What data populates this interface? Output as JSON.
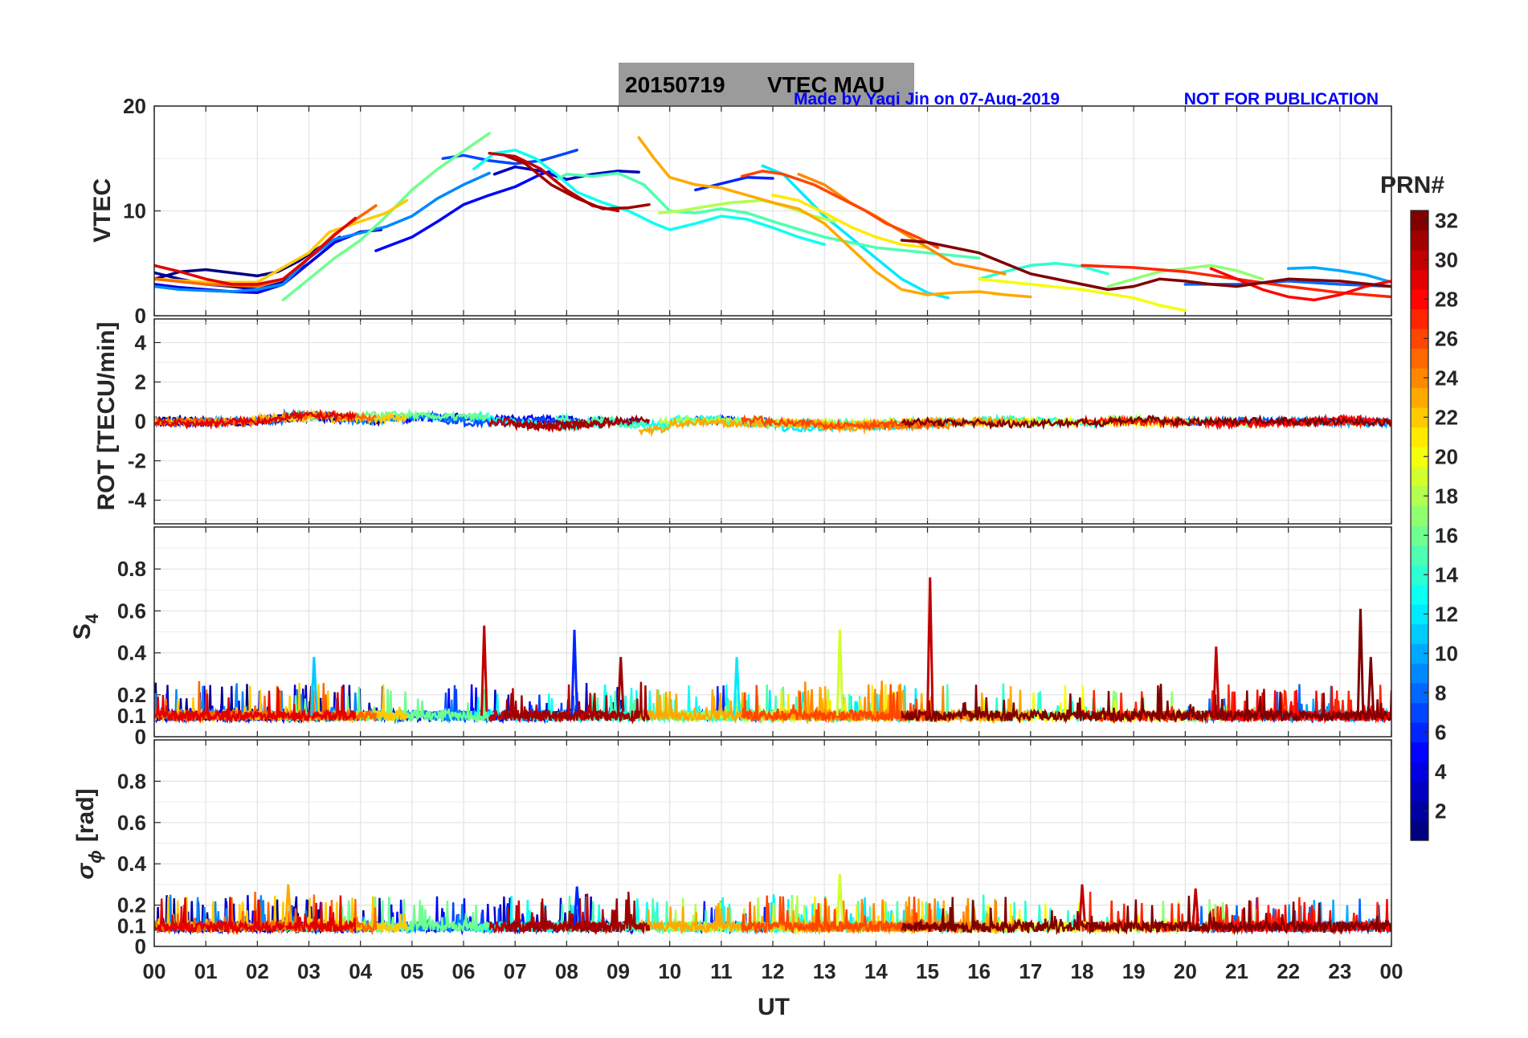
{
  "chart_data": {
    "type": "line",
    "title_box": {
      "date": "20150719",
      "label": "VTEC MAU"
    },
    "credit": "Made by Yaqi Jin on 07-Aug-2019",
    "notice": "NOT FOR PUBLICATION",
    "xlabel": "UT",
    "x_ticks": [
      "00",
      "01",
      "02",
      "03",
      "04",
      "05",
      "06",
      "07",
      "08",
      "09",
      "10",
      "11",
      "12",
      "13",
      "14",
      "15",
      "16",
      "17",
      "18",
      "19",
      "20",
      "21",
      "22",
      "23",
      "00"
    ],
    "xlim": [
      0,
      24
    ],
    "colorbar": {
      "label": "PRN#",
      "range": [
        1,
        32
      ],
      "ticks": [
        "2",
        "4",
        "6",
        "8",
        "10",
        "12",
        "14",
        "16",
        "18",
        "20",
        "22",
        "24",
        "26",
        "28",
        "30",
        "32"
      ]
    },
    "panels": [
      {
        "name": "vtec",
        "ylabel": "VTEC",
        "ylim": [
          0,
          20
        ],
        "yticks": [
          "0",
          "10",
          "20"
        ],
        "series": [
          {
            "prn": 1,
            "x": [
              0,
              0.5,
              1,
              1.5,
              2,
              2.4,
              2.8,
              3.2,
              3.6
            ],
            "y": [
              3.5,
              4.2,
              4.4,
              4.1,
              3.8,
              4.2,
              5.2,
              6.5,
              7.5
            ]
          },
          {
            "prn": 2,
            "x": [
              0,
              0.5,
              1,
              1.5,
              2,
              2.5,
              3,
              3.5,
              4,
              4.4
            ],
            "y": [
              4.1,
              3.5,
              3.0,
              2.8,
              2.5,
              3.2,
              5.0,
              7.0,
              8.0,
              8.2
            ]
          },
          {
            "prn": 3,
            "x": [
              6.6,
              7,
              7.5,
              8,
              8.5,
              9,
              9.4
            ],
            "y": [
              13.5,
              14.2,
              13.8,
              13.0,
              13.5,
              13.8,
              13.7
            ]
          },
          {
            "prn": 4,
            "x": [
              0,
              0.5,
              1,
              1.5,
              2,
              2.5,
              3,
              3.5,
              4
            ],
            "y": [
              3.0,
              2.7,
              2.5,
              2.3,
              2.2,
              3.0,
              5.0,
              7.0,
              8.0
            ]
          },
          {
            "prn": 5,
            "x": [
              4.3,
              5,
              5.5,
              6,
              6.5,
              7,
              7.5,
              7.7
            ],
            "y": [
              6.2,
              7.5,
              9.0,
              10.6,
              11.5,
              12.3,
              13.5,
              13.8
            ]
          },
          {
            "prn": 6,
            "x": [
              10.5,
              11,
              11.5,
              12
            ],
            "y": [
              12.0,
              12.6,
              13.2,
              13.1
            ]
          },
          {
            "prn": 7,
            "x": [
              5.6,
              6,
              6.5,
              7,
              7.5,
              8,
              8.2
            ],
            "y": [
              15.0,
              15.3,
              14.8,
              14.5,
              14.8,
              15.5,
              15.8
            ]
          },
          {
            "prn": 8,
            "x": [
              20,
              21,
              22,
              23,
              24
            ],
            "y": [
              3.0,
              3.0,
              3.3,
              3.0,
              2.8
            ]
          },
          {
            "prn": 9,
            "x": [
              0,
              0.5,
              1,
              1.5,
              2,
              2.5,
              3,
              3.5,
              4,
              4.5,
              5,
              5.5,
              6,
              6.5
            ],
            "y": [
              2.8,
              2.5,
              2.4,
              2.3,
              2.5,
              3.0,
              5.5,
              7.3,
              7.9,
              8.5,
              9.5,
              11.2,
              12.5,
              13.6
            ]
          },
          {
            "prn": 10,
            "x": [
              22,
              22.5,
              23,
              23.5,
              24
            ],
            "y": [
              4.5,
              4.6,
              4.3,
              3.9,
              3.2
            ]
          },
          {
            "prn": 12,
            "x": [
              11.8,
              12.2,
              12.6,
              13,
              13.5,
              14,
              14.5,
              15,
              15.4
            ],
            "y": [
              14.3,
              13.5,
              11.5,
              9.5,
              7.5,
              5.5,
              3.5,
              2.2,
              1.7
            ]
          },
          {
            "prn": 13,
            "x": [
              6.2,
              6.6,
              7,
              7.4,
              7.8,
              8.2,
              8.7,
              9.2,
              9.7,
              10,
              10.5,
              11,
              11.5,
              12,
              12.5,
              13
            ],
            "y": [
              14.0,
              15.5,
              15.8,
              15.0,
              13.5,
              11.8,
              10.8,
              10.0,
              8.8,
              8.2,
              8.8,
              9.5,
              9.2,
              8.4,
              7.5,
              6.8
            ]
          },
          {
            "prn": 14,
            "x": [
              16,
              16.5,
              17,
              17.5,
              18,
              18.5
            ],
            "y": [
              3.5,
              4.2,
              4.8,
              5.0,
              4.7,
              4.0
            ]
          },
          {
            "prn": 15,
            "x": [
              7.8,
              8,
              8.5,
              9,
              9.5,
              10,
              10.5,
              11,
              11.5,
              12,
              13,
              14,
              15,
              16
            ],
            "y": [
              13.0,
              13.5,
              13.3,
              13.6,
              12.5,
              10.0,
              9.8,
              10.2,
              9.8,
              9.0,
              7.5,
              6.5,
              6.0,
              5.5
            ]
          },
          {
            "prn": 16,
            "x": [
              2.5,
              3,
              3.5,
              4,
              4.5,
              5,
              5.5,
              6,
              6.5
            ],
            "y": [
              1.5,
              3.5,
              5.5,
              7.2,
              9.5,
              12.0,
              14.0,
              15.7,
              17.4
            ]
          },
          {
            "prn": 17,
            "x": [
              18.5,
              19,
              19.5,
              20,
              20.5,
              21,
              21.5
            ],
            "y": [
              2.8,
              3.5,
              4.2,
              4.5,
              4.8,
              4.3,
              3.5
            ]
          },
          {
            "prn": 18,
            "x": [
              9.8,
              10.2,
              10.8,
              11.2,
              11.8,
              12.2,
              12.8,
              13.2
            ],
            "y": [
              9.8,
              10.0,
              10.5,
              10.8,
              11.0,
              10.5,
              9.5,
              9.0
            ]
          },
          {
            "prn": 20,
            "x": [
              16,
              17,
              18,
              19,
              19.5,
              20
            ],
            "y": [
              3.5,
              3.0,
              2.5,
              1.7,
              1.0,
              0.5
            ]
          },
          {
            "prn": 21,
            "x": [
              12,
              12.5,
              13,
              13.5,
              14,
              14.5,
              15
            ],
            "y": [
              11.5,
              11.0,
              9.8,
              8.5,
              7.5,
              6.8,
              6.5
            ]
          },
          {
            "prn": 22,
            "x": [
              0,
              1,
              2,
              3,
              3.4,
              4,
              4.5,
              4.9
            ],
            "y": [
              3.5,
              3.2,
              3.2,
              6.0,
              8.0,
              9.0,
              9.8,
              11.0
            ]
          },
          {
            "prn": 23,
            "x": [
              9.4,
              9.7,
              10,
              10.5,
              11,
              11.5,
              12,
              12.5,
              13,
              13.5,
              14,
              14.5,
              15,
              15.5,
              16,
              16.5,
              17
            ],
            "y": [
              17.0,
              15.0,
              13.2,
              12.5,
              12.2,
              11.5,
              10.8,
              10.2,
              8.8,
              6.5,
              4.2,
              2.5,
              2.0,
              2.2,
              2.3,
              2.0,
              1.8
            ]
          },
          {
            "prn": 24,
            "x": [
              12.5,
              13,
              13.5,
              14,
              14.5,
              15,
              15.5,
              16,
              16.5
            ],
            "y": [
              13.5,
              12.5,
              10.8,
              9.5,
              8.0,
              6.5,
              5.0,
              4.5,
              4.0
            ]
          },
          {
            "prn": 25,
            "x": [
              0,
              1,
              2,
              2.5,
              3,
              3.5,
              4,
              4.3
            ],
            "y": [
              3.5,
              3.0,
              2.8,
              3.5,
              5.5,
              7.8,
              9.5,
              10.5
            ]
          },
          {
            "prn": 26,
            "x": [
              11.4,
              11.8,
              12.2,
              12.8,
              13.2,
              13.8,
              14.2,
              14.8,
              15.2
            ],
            "y": [
              13.3,
              13.8,
              13.5,
              12.5,
              11.5,
              10.0,
              8.8,
              7.5,
              6.5
            ]
          },
          {
            "prn": 27,
            "x": [
              18,
              19,
              20,
              21,
              22,
              23,
              24
            ],
            "y": [
              4.8,
              4.6,
              4.2,
              3.5,
              2.8,
              2.2,
              1.8
            ]
          },
          {
            "prn": 28,
            "x": [
              20.5,
              21,
              21.5,
              22,
              22.5,
              23,
              23.5,
              24
            ],
            "y": [
              4.5,
              3.5,
              2.5,
              1.8,
              1.5,
              2.0,
              2.8,
              3.3
            ]
          },
          {
            "prn": 29,
            "x": [
              0,
              0.5,
              1,
              1.5,
              2,
              2.5,
              3,
              3.5,
              3.9
            ],
            "y": [
              4.8,
              4.2,
              3.5,
              3.0,
              3.0,
              3.5,
              5.5,
              7.7,
              9.3
            ]
          },
          {
            "prn": 30,
            "x": [
              6.5,
              7,
              7.5,
              8,
              8.5,
              9
            ],
            "y": [
              15.5,
              15.2,
              14.0,
              12.0,
              10.5,
              10.0
            ]
          },
          {
            "prn": 31,
            "x": [
              6.8,
              7.2,
              7.7,
              8.2,
              8.7,
              9.2,
              9.6
            ],
            "y": [
              15.3,
              14.5,
              12.5,
              11.2,
              10.2,
              10.3,
              10.6
            ]
          },
          {
            "prn": 32,
            "x": [
              14.5,
              15,
              16,
              17,
              18,
              18.5,
              19,
              19.5,
              20,
              20.5,
              21,
              22,
              23,
              24
            ],
            "y": [
              7.2,
              7.0,
              6.0,
              4.0,
              3.0,
              2.5,
              2.8,
              3.5,
              3.3,
              3.0,
              2.8,
              3.5,
              3.3,
              2.8
            ]
          }
        ]
      },
      {
        "name": "rot",
        "ylabel": "ROT [TECU/min]",
        "ylim": [
          -5.2,
          5.2
        ],
        "yticks": [
          "-4",
          "-2",
          "0",
          "2",
          "4"
        ]
      },
      {
        "name": "s4",
        "ylabel": "S",
        "ylabel_sub": "4",
        "ylim": [
          0,
          1
        ],
        "yticks": [
          "0",
          "0.1",
          "0.2",
          "0.4",
          "0.6",
          "0.8"
        ],
        "spikes": [
          {
            "prn": 30,
            "x": 6.4,
            "y": 0.53
          },
          {
            "prn": 6,
            "x": 8.15,
            "y": 0.51
          },
          {
            "prn": 31,
            "x": 9.05,
            "y": 0.38
          },
          {
            "prn": 19,
            "x": 13.3,
            "y": 0.51
          },
          {
            "prn": 30,
            "x": 15.05,
            "y": 0.76
          },
          {
            "prn": 11,
            "x": 3.1,
            "y": 0.38
          },
          {
            "prn": 30,
            "x": 20.6,
            "y": 0.43
          },
          {
            "prn": 32,
            "x": 23.4,
            "y": 0.61
          },
          {
            "prn": 32,
            "x": 23.6,
            "y": 0.38
          },
          {
            "prn": 12,
            "x": 11.3,
            "y": 0.38
          }
        ]
      },
      {
        "name": "sigma_phi",
        "ylabel": "σ",
        "ylabel_sub": "ϕ",
        "ylabel_unit": "[rad]",
        "ylim": [
          0,
          1
        ],
        "yticks": [
          "0",
          "0.1",
          "0.2",
          "0.4",
          "0.6",
          "0.8"
        ],
        "spikes": [
          {
            "prn": 19,
            "x": 13.3,
            "y": 0.35
          },
          {
            "prn": 23,
            "x": 2.6,
            "y": 0.3
          },
          {
            "prn": 30,
            "x": 18.0,
            "y": 0.3
          },
          {
            "prn": 30,
            "x": 20.2,
            "y": 0.28
          },
          {
            "prn": 6,
            "x": 8.2,
            "y": 0.29
          }
        ]
      }
    ]
  }
}
